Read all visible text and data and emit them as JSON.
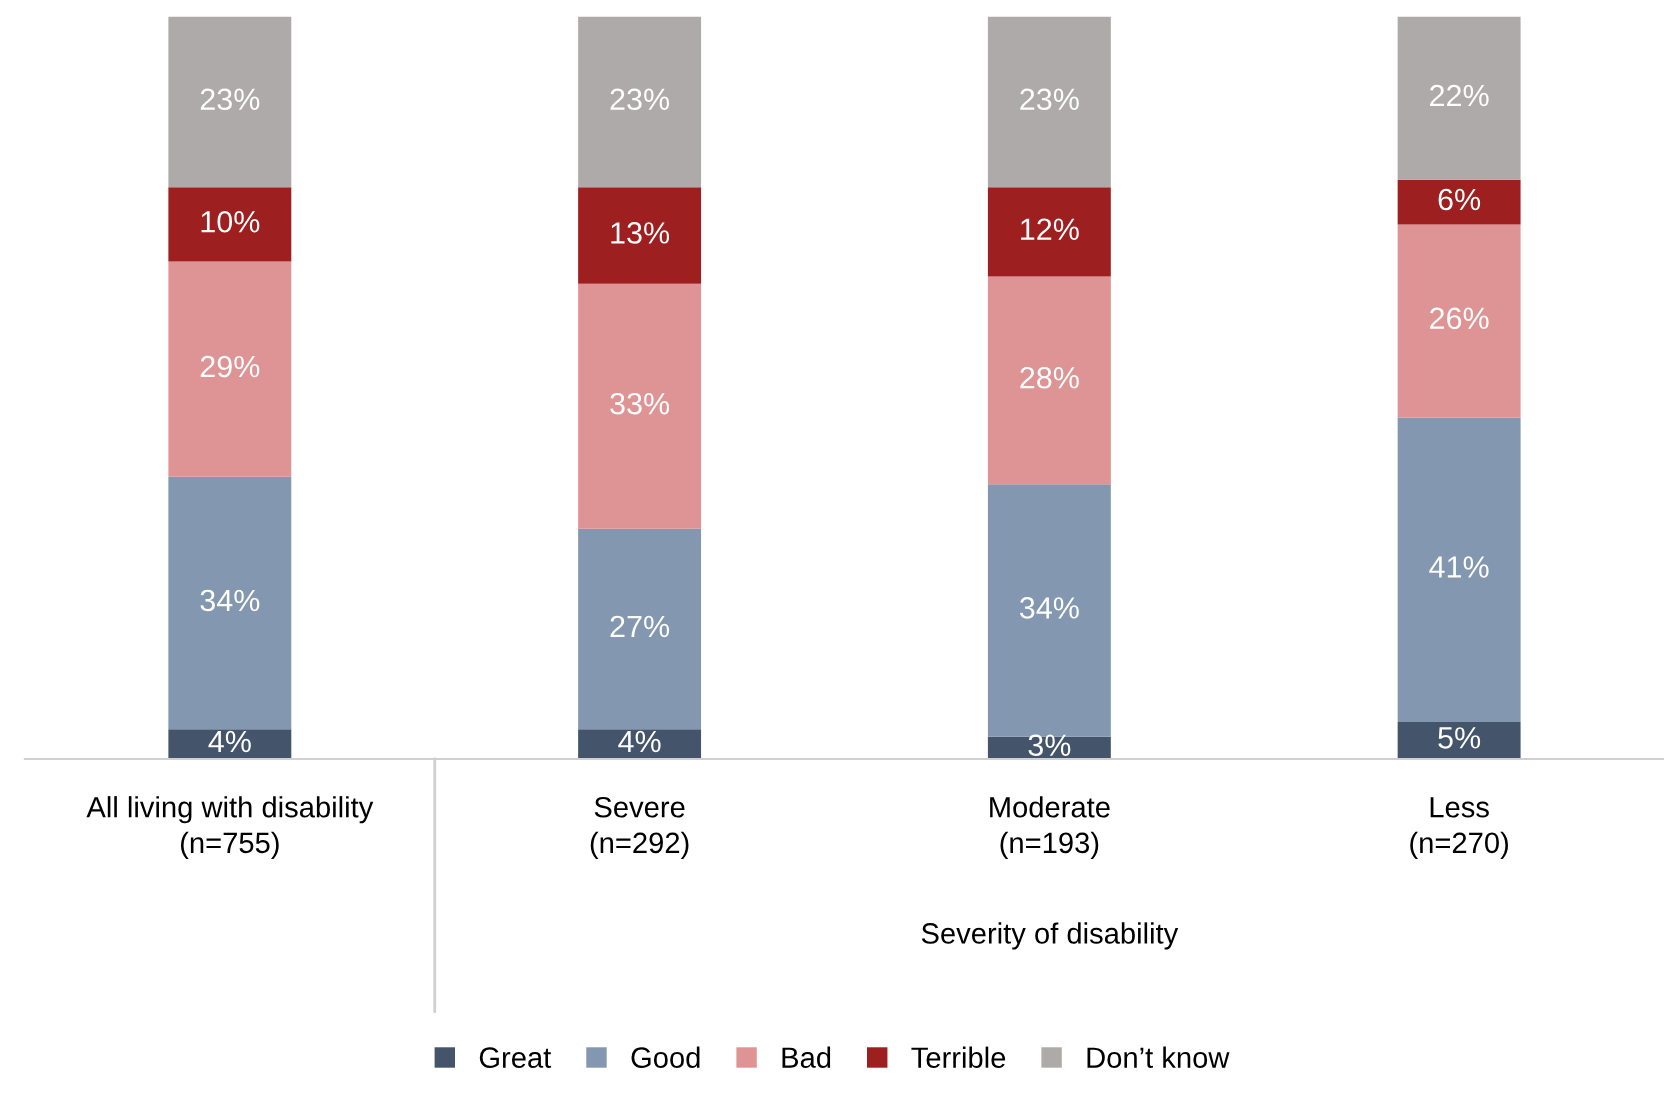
{
  "chart_data": {
    "type": "bar",
    "stacked": true,
    "categories": [
      "All living with disability\n(n=755)",
      "Severe\n(n=292)",
      "Moderate\n(n=193)",
      "Less\n(n=270)"
    ],
    "xlabel": "Severity of disability",
    "series": [
      {
        "name": "Great",
        "color": "#44546a",
        "values": [
          4,
          4,
          3,
          5
        ],
        "value_labels": [
          "4%",
          "4%",
          "3%",
          "5%"
        ]
      },
      {
        "name": "Good",
        "color": "#8497b0",
        "values": [
          34,
          27,
          34,
          41
        ],
        "value_labels": [
          "34%",
          "27%",
          "34%",
          "41%"
        ]
      },
      {
        "name": "Bad",
        "color": "#de9495",
        "values": [
          29,
          33,
          28,
          26
        ],
        "value_labels": [
          "29%",
          "33%",
          "28%",
          "26%"
        ]
      },
      {
        "name": "Terrible",
        "color": "#9e1f1f",
        "values": [
          10,
          13,
          12,
          6
        ],
        "value_labels": [
          "10%",
          "13%",
          "12%",
          "6%"
        ]
      },
      {
        "name": "Don’t know",
        "color": "#aeaaaa",
        "values": [
          23,
          23,
          23,
          22
        ],
        "value_labels": [
          "23%",
          "23%",
          "23%",
          "22%"
        ]
      }
    ],
    "legend": "bottom"
  }
}
